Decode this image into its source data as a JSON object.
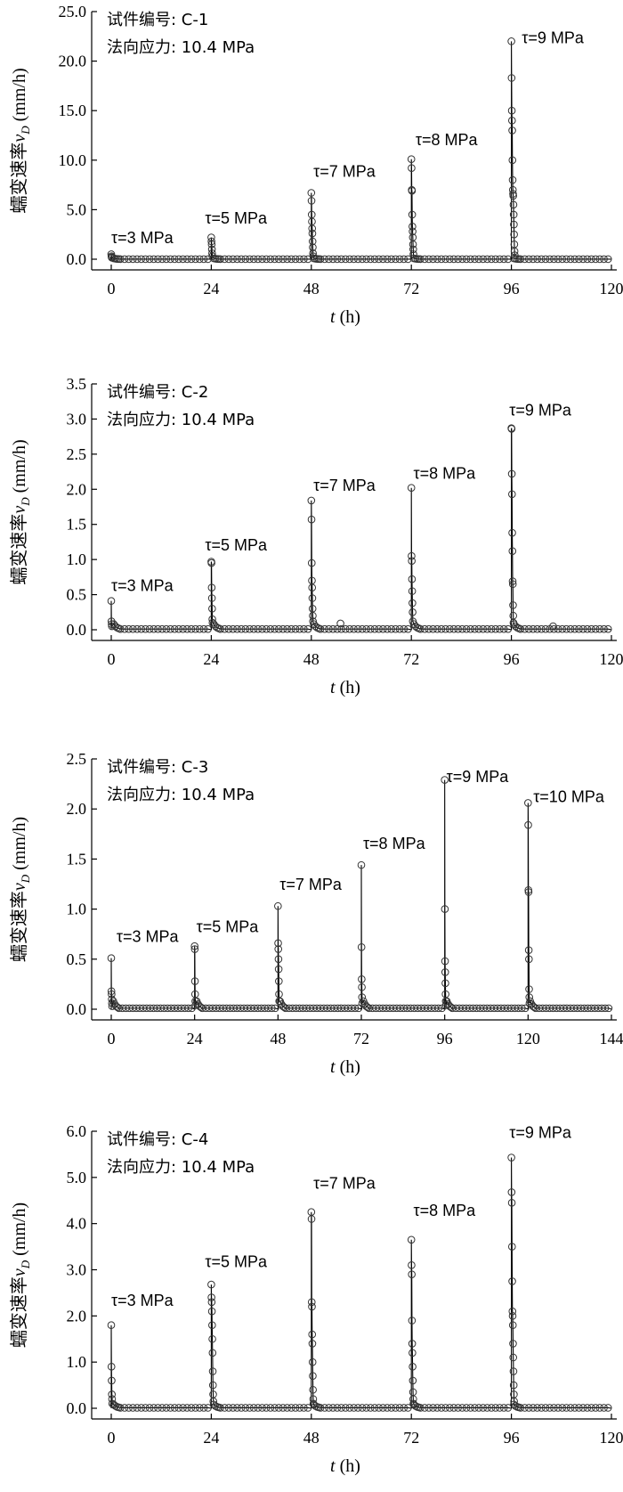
{
  "chart_data": [
    {
      "type": "scatter",
      "info_lines": [
        "试件编号: C-1",
        "法向应力: 10.4 MPa"
      ],
      "ylabel_main": "蠕变速率",
      "ylabel_sym": "v",
      "ylabel_sub": "D",
      "ylabel_unit": " (mm/h)",
      "xlabel_sym": "t",
      "xlabel_unit": " (h)",
      "xlim": [
        0,
        120
      ],
      "ylim": [
        0,
        25
      ],
      "xticks": [
        0,
        24,
        48,
        72,
        96,
        120
      ],
      "yticks": [
        "0.0",
        "5.0",
        "10.0",
        "15.0",
        "20.0",
        "25.0"
      ],
      "yticks_values": [
        0,
        5,
        10,
        15,
        20,
        25
      ],
      "annotations": [
        {
          "text": "τ=3 MPa",
          "x": 0,
          "y": 1.6
        },
        {
          "text": "τ=5 MPa",
          "x": 22.5,
          "y": 3.6
        },
        {
          "text": "τ=7 MPa",
          "x": 48.5,
          "y": 8.3
        },
        {
          "text": "τ=8 MPa",
          "x": 73,
          "y": 11.5
        },
        {
          "text": "τ=9 MPa",
          "x": 98.5,
          "y": 21.8
        }
      ],
      "stages": [
        {
          "start": 0,
          "end": 24,
          "peak": 0.5,
          "mids": [
            0.3,
            0.2,
            0.15
          ]
        },
        {
          "start": 24,
          "end": 48,
          "peak": 2.2,
          "mids": [
            1.8,
            1.5,
            1.0,
            0.6,
            0.3
          ]
        },
        {
          "start": 48,
          "end": 72,
          "peak": 6.7,
          "mids": [
            5.9,
            4.5,
            3.8,
            3.1,
            2.6,
            1.8,
            1.2,
            0.6,
            0.3
          ]
        },
        {
          "start": 72,
          "end": 96,
          "peak": 10.1,
          "mids": [
            9.2,
            7.0,
            6.9,
            4.5,
            3.3,
            2.8,
            2.2,
            1.5,
            1.0,
            0.5
          ]
        },
        {
          "start": 96,
          "end": 120,
          "peak": 22.0,
          "mids": [
            18.3,
            15.0,
            14.0,
            13.0,
            10.0,
            8.0,
            7.0,
            6.6,
            6.4,
            5.5,
            4.5,
            3.5,
            2.5,
            1.5,
            0.8,
            0.4
          ]
        }
      ]
    },
    {
      "type": "scatter",
      "info_lines": [
        "试件编号: C-2",
        "法向应力: 10.4 MPa"
      ],
      "ylabel_main": "蠕变速率",
      "ylabel_sym": "v",
      "ylabel_sub": "D",
      "ylabel_unit": " (mm/h)",
      "xlabel_sym": "t",
      "xlabel_unit": " (h)",
      "xlim": [
        0,
        120
      ],
      "ylim": [
        0,
        3.5
      ],
      "xticks": [
        0,
        24,
        48,
        72,
        96,
        120
      ],
      "yticks": [
        "0.0",
        "0.5",
        "1.0",
        "1.5",
        "2.0",
        "2.5",
        "3.0",
        "3.5"
      ],
      "yticks_values": [
        0,
        0.5,
        1,
        1.5,
        2,
        2.5,
        3,
        3.5
      ],
      "annotations": [
        {
          "text": "τ=3 MPa",
          "x": 0,
          "y": 0.55
        },
        {
          "text": "τ=5 MPa",
          "x": 22.5,
          "y": 1.13
        },
        {
          "text": "τ=7 MPa",
          "x": 48.5,
          "y": 1.98
        },
        {
          "text": "τ=8 MPa",
          "x": 72.5,
          "y": 2.15
        },
        {
          "text": "τ=9 MPa",
          "x": 95.5,
          "y": 3.05
        }
      ],
      "stages": [
        {
          "start": 0,
          "end": 24,
          "peak": 0.41,
          "mids": [
            0.12,
            0.08,
            0.05
          ]
        },
        {
          "start": 24,
          "end": 48,
          "peak": 0.97,
          "mids": [
            0.95,
            0.6,
            0.45,
            0.3,
            0.15,
            0.1
          ]
        },
        {
          "start": 48,
          "end": 72,
          "peak": 1.84,
          "mids": [
            1.57,
            0.95,
            0.7,
            0.6,
            0.45,
            0.3,
            0.2,
            0.12
          ]
        },
        {
          "start": 72,
          "end": 96,
          "peak": 2.02,
          "mids": [
            1.05,
            0.98,
            0.72,
            0.55,
            0.38,
            0.25,
            0.12
          ]
        },
        {
          "start": 96,
          "end": 120,
          "peak": 2.87,
          "mids": [
            2.86,
            2.22,
            1.93,
            1.38,
            1.12,
            0.69,
            0.65,
            0.35,
            0.2,
            0.1
          ]
        }
      ],
      "extras": [
        {
          "x": 55,
          "y": 0.09
        },
        {
          "x": 106,
          "y": 0.05
        }
      ]
    },
    {
      "type": "scatter",
      "info_lines": [
        "试件编号: C-3",
        "法向应力: 10.4 MPa"
      ],
      "ylabel_main": "蠕变速率",
      "ylabel_sym": "v",
      "ylabel_sub": "D",
      "ylabel_unit": " (mm/h)",
      "xlabel_sym": "t",
      "xlabel_unit": " (h)",
      "xlim": [
        0,
        144
      ],
      "ylim": [
        0,
        2.5
      ],
      "xticks": [
        0,
        24,
        48,
        72,
        96,
        120,
        144
      ],
      "yticks": [
        "0.0",
        "0.5",
        "1.0",
        "1.5",
        "2.0",
        "2.5"
      ],
      "yticks_values": [
        0,
        0.5,
        1,
        1.5,
        2,
        2.5
      ],
      "annotations": [
        {
          "text": "τ=3 MPa",
          "x": 1.5,
          "y": 0.67
        },
        {
          "text": "τ=5 MPa",
          "x": 24.5,
          "y": 0.77
        },
        {
          "text": "τ=7 MPa",
          "x": 48.5,
          "y": 1.19
        },
        {
          "text": "τ=8 MPa",
          "x": 72.5,
          "y": 1.6
        },
        {
          "text": "τ=9 MPa",
          "x": 96.5,
          "y": 2.27
        },
        {
          "text": "τ=10 MPa",
          "x": 121.5,
          "y": 2.07
        }
      ],
      "stages": [
        {
          "start": 0,
          "end": 24,
          "peak": 0.51,
          "mids": [
            0.18,
            0.15,
            0.1,
            0.06,
            0.03
          ]
        },
        {
          "start": 24,
          "end": 48,
          "peak": 0.63,
          "mids": [
            0.6,
            0.28,
            0.15,
            0.08,
            0.04
          ]
        },
        {
          "start": 48,
          "end": 72,
          "peak": 1.03,
          "mids": [
            0.66,
            0.6,
            0.5,
            0.4,
            0.28,
            0.15,
            0.08
          ]
        },
        {
          "start": 72,
          "end": 96,
          "peak": 1.44,
          "mids": [
            0.62,
            0.3,
            0.22,
            0.12,
            0.06
          ]
        },
        {
          "start": 96,
          "end": 120,
          "peak": 2.29,
          "mids": [
            1.0,
            0.48,
            0.37,
            0.26,
            0.15,
            0.08,
            0.04
          ]
        },
        {
          "start": 120,
          "end": 144,
          "peak": 2.06,
          "mids": [
            1.84,
            1.19,
            1.17,
            0.59,
            0.5,
            0.2,
            0.12,
            0.06
          ]
        }
      ]
    },
    {
      "type": "scatter",
      "info_lines": [
        "试件编号: C-4",
        "法向应力: 10.4 MPa"
      ],
      "ylabel_main": "蠕变速率",
      "ylabel_sym": "v",
      "ylabel_sub": "D",
      "ylabel_unit": " (mm/h)",
      "xlabel_sym": "t",
      "xlabel_unit": " (h)",
      "xlim": [
        0,
        120
      ],
      "ylim": [
        0,
        6
      ],
      "xticks": [
        0,
        24,
        48,
        72,
        96,
        120
      ],
      "yticks": [
        "0.0",
        "1.0",
        "2.0",
        "3.0",
        "4.0",
        "5.0",
        "6.0"
      ],
      "yticks_values": [
        0,
        1,
        2,
        3,
        4,
        5,
        6
      ],
      "annotations": [
        {
          "text": "τ=3 MPa",
          "x": 0,
          "y": 2.22
        },
        {
          "text": "τ=5 MPa",
          "x": 22.5,
          "y": 3.06
        },
        {
          "text": "τ=7 MPa",
          "x": 48.5,
          "y": 4.76
        },
        {
          "text": "τ=8 MPa",
          "x": 72.5,
          "y": 4.17
        },
        {
          "text": "τ=9 MPa",
          "x": 95.5,
          "y": 5.86
        }
      ],
      "stages": [
        {
          "start": 0,
          "end": 24,
          "peak": 1.8,
          "mids": [
            0.9,
            0.6,
            0.3,
            0.2,
            0.1
          ]
        },
        {
          "start": 24,
          "end": 48,
          "peak": 2.68,
          "mids": [
            2.4,
            2.3,
            2.1,
            1.8,
            1.5,
            1.2,
            0.8,
            0.5,
            0.3,
            0.15
          ]
        },
        {
          "start": 48,
          "end": 72,
          "peak": 4.25,
          "mids": [
            4.1,
            2.3,
            2.2,
            1.6,
            1.4,
            1.0,
            0.7,
            0.4,
            0.2,
            0.1
          ]
        },
        {
          "start": 72,
          "end": 96,
          "peak": 3.65,
          "mids": [
            3.1,
            2.9,
            1.9,
            1.4,
            1.2,
            0.9,
            0.6,
            0.35,
            0.2,
            0.1
          ]
        },
        {
          "start": 96,
          "end": 120,
          "peak": 5.43,
          "mids": [
            4.68,
            4.45,
            3.5,
            2.75,
            2.1,
            2.0,
            1.8,
            1.4,
            1.1,
            0.8,
            0.5,
            0.3,
            0.15
          ]
        }
      ]
    }
  ]
}
